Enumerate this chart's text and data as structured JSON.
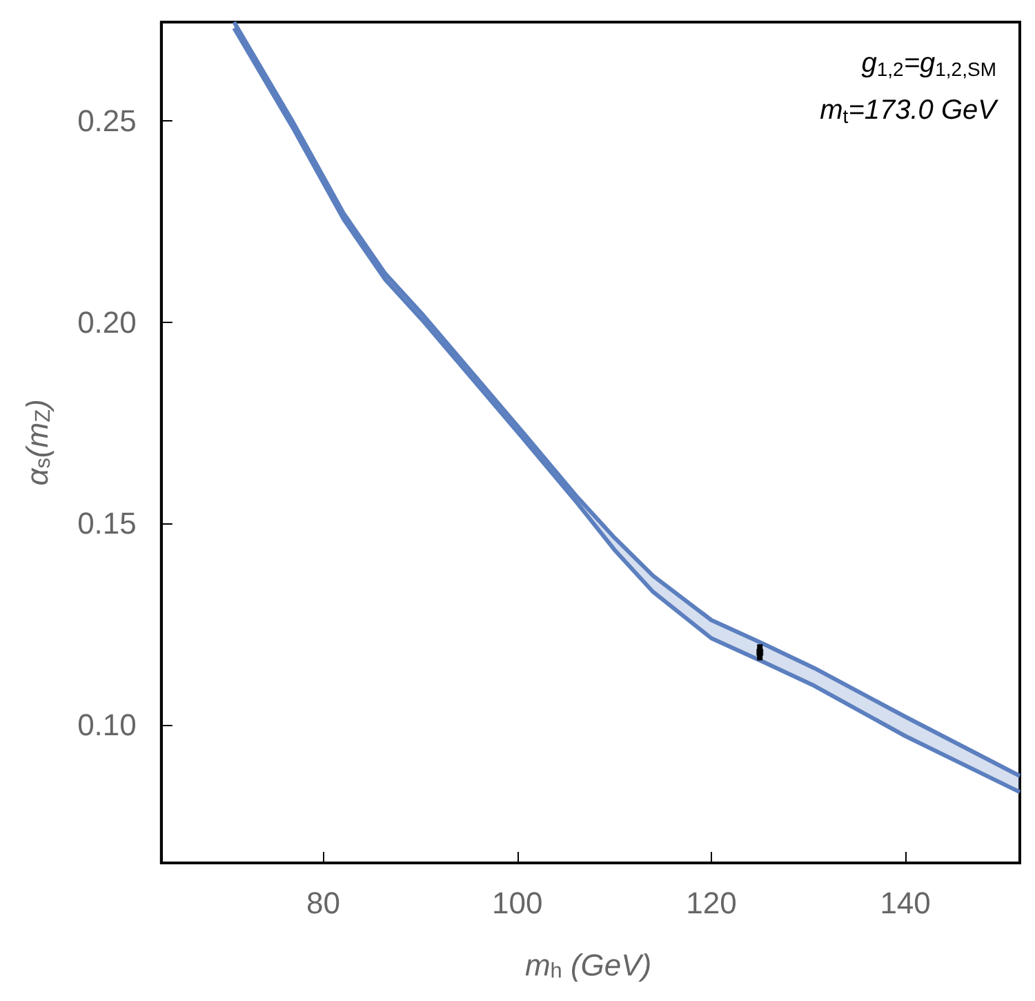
{
  "chart_data": {
    "type": "line",
    "xlabel": "m$_{h}$ (GeV)",
    "ylabel": "α$_{s}$(m$_{Z}$)",
    "annotations": [
      "g$_{1,2}$=g$_{1,2,SM}$",
      "m$_{t}$=173.0 GeV"
    ],
    "xlim": [
      63.3,
      151.8
    ],
    "ylim": [
      0.0657,
      0.2745
    ],
    "xticks": [
      80,
      100,
      120,
      140
    ],
    "yticks": [
      {
        "value": 0.1,
        "label": "0.10"
      },
      {
        "value": 0.15,
        "label": "0.15"
      },
      {
        "value": 0.2,
        "label": "0.20"
      },
      {
        "value": 0.25,
        "label": "0.25"
      }
    ],
    "grid": false,
    "marker": "none",
    "line_style": "solid",
    "series": [
      {
        "type": "line",
        "color": "#5b7fbf",
        "x": [
          70.8,
          76.8,
          82.1,
          86.4,
          90.2,
          95.5,
          100.8,
          106.2,
          110,
          114,
          120,
          125,
          130.6,
          140,
          151.8
        ],
        "values": [
          0.273,
          0.2485,
          0.2255,
          0.2105,
          0.2005,
          0.1855,
          0.1705,
          0.155,
          0.1435,
          0.133,
          0.1215,
          0.116,
          0.1097,
          0.0972,
          0.0833
        ],
        "lower": [
          0.273,
          0.2485,
          0.2255,
          0.2105,
          0.2005,
          0.1855,
          0.1705,
          0.155,
          0.1435,
          0.133,
          0.1215,
          0.116,
          0.1097,
          0.0972,
          0.0833
        ],
        "upper": [
          0.2745,
          0.25,
          0.227,
          0.212,
          0.202,
          0.187,
          0.172,
          0.1565,
          0.1465,
          0.137,
          0.126,
          0.1205,
          0.1141,
          0.102,
          0.0873
        ]
      },
      {
        "color": "#5b7fbf",
        "x": [
          70.8,
          76.8,
          82.1,
          86.4,
          90.2,
          95.5,
          100.8,
          106.2,
          110,
          114,
          120,
          125,
          130.6,
          140,
          151.8
        ],
        "values": [
          0.2745,
          0.25,
          0.227,
          0.212,
          0.202,
          0.187,
          0.172,
          0.1565,
          0.1465,
          0.137,
          0.126,
          0.1205,
          0.1141,
          0.102,
          0.0873
        ]
      },
      {
        "type": "scatter",
        "marker": "square",
        "color": "#000000",
        "x": [
          125
        ],
        "values": [
          0.118
        ],
        "errors": [
          [
            0.116,
            0.12
          ]
        ]
      }
    ]
  }
}
